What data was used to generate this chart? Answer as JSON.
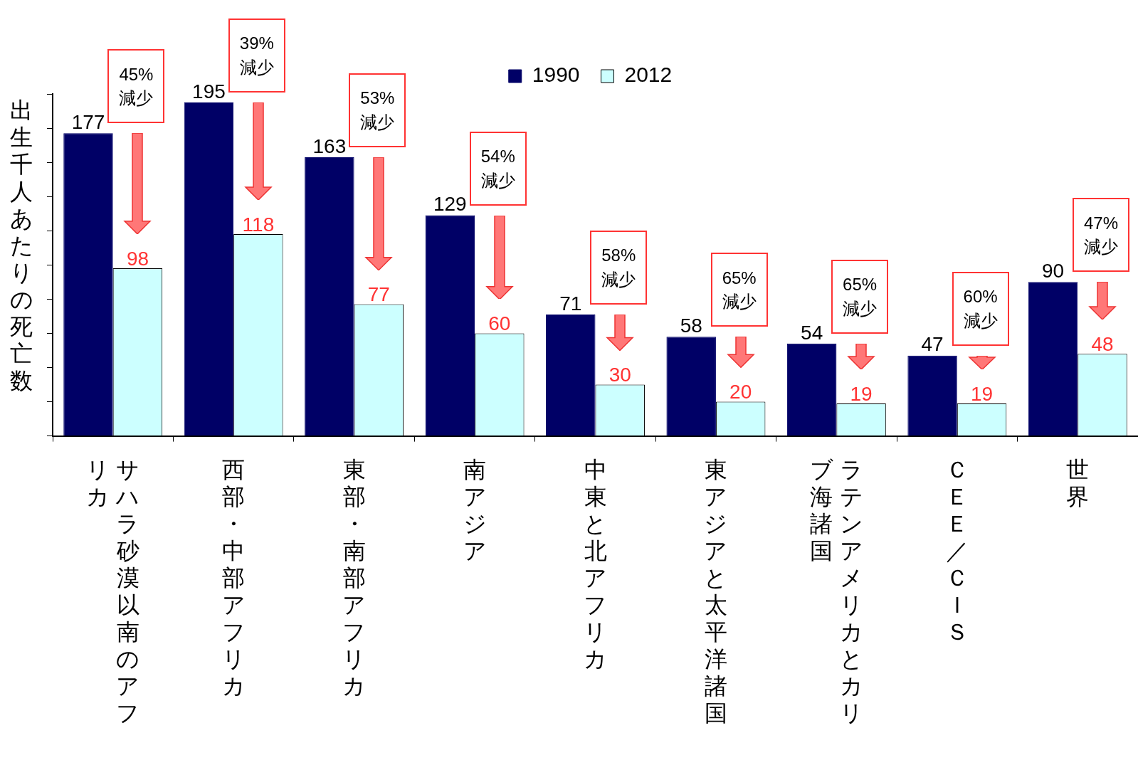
{
  "chart_data": {
    "type": "bar",
    "ylabel": "出生千人あたりの死亡数",
    "categories": [
      "サハラ砂漠以南のアフリカ",
      "西部・中部アフリカ",
      "東部・南部アフリカ",
      "南アジア",
      "中東と北アフリカ",
      "東アジアと太平洋諸国",
      "ラテンアメリカとカリブ海諸国",
      "ＣＥＥ／ＣＩＳ",
      "世界"
    ],
    "series": [
      {
        "name": "1990",
        "color": "#000066",
        "values": [
          177,
          195,
          163,
          129,
          71,
          58,
          54,
          47,
          90
        ]
      },
      {
        "name": "2012",
        "color": "#ccffff",
        "values": [
          98,
          118,
          77,
          60,
          30,
          20,
          19,
          19,
          48
        ]
      }
    ],
    "ylim": [
      0,
      200
    ],
    "yticks": [
      {
        "value": 0,
        "label": null
      },
      {
        "value": 20,
        "label": null
      },
      {
        "value": 40,
        "label": null
      },
      {
        "value": 60,
        "label": null
      },
      {
        "value": 80,
        "label": null
      },
      {
        "value": 100,
        "label": null
      },
      {
        "value": 120,
        "label": null
      },
      {
        "value": 140,
        "label": null
      },
      {
        "value": 160,
        "label": null
      },
      {
        "value": 180,
        "label": null
      },
      {
        "value": 200,
        "label": null
      }
    ],
    "grid": false,
    "legend": "top",
    "data_labels": true,
    "annotations": [
      "45%\n減少",
      "39%\n減少",
      "53%\n減少",
      "54%\n減少",
      "58%\n減少",
      "65%\n減少",
      "65%\n減少",
      "60%\n減少",
      "47%\n減少"
    ]
  }
}
